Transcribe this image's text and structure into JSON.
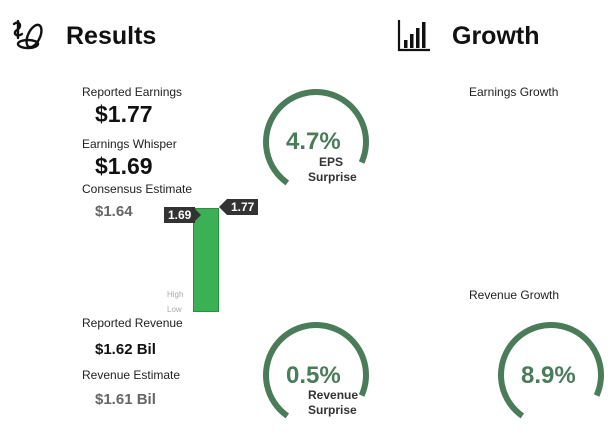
{
  "colors": {
    "accent": "#4a7c59",
    "bar": "#3cb054",
    "tag": "#333333"
  },
  "icons": {
    "results": "coins-dollar-icon",
    "growth": "bar-chart-icon"
  },
  "results": {
    "title": "Results",
    "reported_earnings_label": "Reported Earnings",
    "reported_earnings_value": "$1.77",
    "whisper_label": "Earnings Whisper",
    "whisper_value": "$1.69",
    "consensus_label": "Consensus Estimate",
    "consensus_value": "$1.64",
    "reported_revenue_label": "Reported Revenue",
    "reported_revenue_value": "$1.62 Bil",
    "revenue_estimate_label": "Revenue Estimate",
    "revenue_estimate_value": "$1.61 Bil"
  },
  "range_chart": {
    "tag_left": "1.69",
    "tag_right": "1.77",
    "high_label": "High",
    "low_label": "Low"
  },
  "eps_surprise": {
    "value": "4.7%",
    "caption_line1": "EPS",
    "caption_line2": "Surprise",
    "fraction": 0.72
  },
  "revenue_surprise": {
    "value": "0.5%",
    "caption_line1": "Revenue",
    "caption_line2": "Surprise",
    "fraction": 0.72
  },
  "growth": {
    "title": "Growth",
    "earnings_growth_label": "Earnings Growth",
    "revenue_growth_label": "Revenue Growth",
    "revenue_growth_value": "8.9%",
    "revenue_growth_fraction": 0.72
  }
}
